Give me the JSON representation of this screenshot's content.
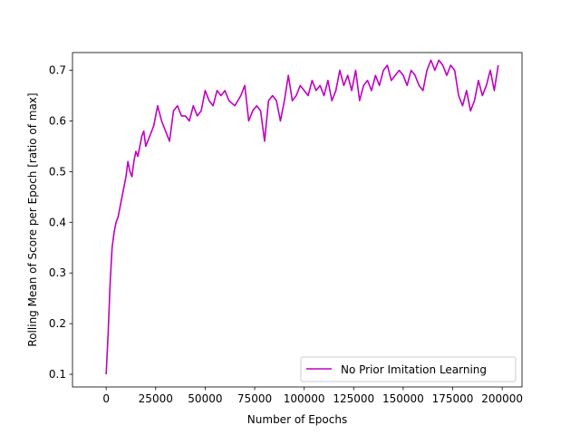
{
  "chart_data": {
    "type": "line",
    "title": "",
    "xlabel": "Number of Epochs",
    "ylabel": "Rolling Mean of Score per Epoch [ratio of max]",
    "xlim": [
      -17000,
      210000
    ],
    "ylim": [
      0.075,
      0.735
    ],
    "xticks": [
      0,
      25000,
      50000,
      75000,
      100000,
      125000,
      150000,
      175000,
      200000
    ],
    "yticks": [
      0.1,
      0.2,
      0.3,
      0.4,
      0.5,
      0.6,
      0.7
    ],
    "grid": false,
    "legend_position": "lower-right",
    "series": [
      {
        "name": "No Prior Imitation Learning",
        "color": "#bf00bf",
        "x": [
          0,
          1000,
          2000,
          3000,
          4000,
          5000,
          6000,
          7000,
          8000,
          9000,
          10000,
          11000,
          12000,
          13000,
          14000,
          15000,
          16000,
          17000,
          18000,
          19000,
          20000,
          22000,
          24000,
          26000,
          28000,
          30000,
          32000,
          34000,
          36000,
          38000,
          40000,
          42000,
          44000,
          46000,
          48000,
          50000,
          52000,
          54000,
          56000,
          58000,
          60000,
          62000,
          65000,
          68000,
          70000,
          72000,
          74000,
          76000,
          78000,
          80000,
          82000,
          84000,
          86000,
          88000,
          90000,
          92000,
          94000,
          96000,
          98000,
          100000,
          102000,
          104000,
          106000,
          108000,
          110000,
          112000,
          114000,
          116000,
          118000,
          120000,
          122000,
          124000,
          126000,
          128000,
          130000,
          132000,
          134000,
          136000,
          138000,
          140000,
          142000,
          144000,
          146000,
          148000,
          150000,
          152000,
          154000,
          156000,
          158000,
          160000,
          162000,
          164000,
          166000,
          168000,
          170000,
          172000,
          174000,
          176000,
          178000,
          180000,
          182000,
          184000,
          186000,
          188000,
          190000,
          192000,
          194000,
          196000,
          198000
        ],
        "y": [
          0.1,
          0.18,
          0.28,
          0.35,
          0.38,
          0.4,
          0.41,
          0.43,
          0.45,
          0.47,
          0.49,
          0.52,
          0.5,
          0.49,
          0.52,
          0.54,
          0.53,
          0.55,
          0.57,
          0.58,
          0.55,
          0.57,
          0.59,
          0.63,
          0.6,
          0.58,
          0.56,
          0.62,
          0.63,
          0.61,
          0.61,
          0.6,
          0.63,
          0.61,
          0.62,
          0.66,
          0.64,
          0.63,
          0.66,
          0.65,
          0.66,
          0.64,
          0.63,
          0.65,
          0.67,
          0.6,
          0.62,
          0.63,
          0.62,
          0.56,
          0.64,
          0.65,
          0.64,
          0.6,
          0.64,
          0.69,
          0.64,
          0.65,
          0.67,
          0.66,
          0.65,
          0.68,
          0.66,
          0.67,
          0.65,
          0.68,
          0.64,
          0.66,
          0.7,
          0.67,
          0.69,
          0.66,
          0.7,
          0.64,
          0.67,
          0.68,
          0.66,
          0.69,
          0.67,
          0.7,
          0.71,
          0.68,
          0.69,
          0.7,
          0.69,
          0.67,
          0.7,
          0.69,
          0.67,
          0.66,
          0.7,
          0.72,
          0.7,
          0.72,
          0.71,
          0.69,
          0.71,
          0.7,
          0.65,
          0.63,
          0.66,
          0.62,
          0.64,
          0.68,
          0.65,
          0.67,
          0.7,
          0.66,
          0.71
        ]
      }
    ]
  }
}
